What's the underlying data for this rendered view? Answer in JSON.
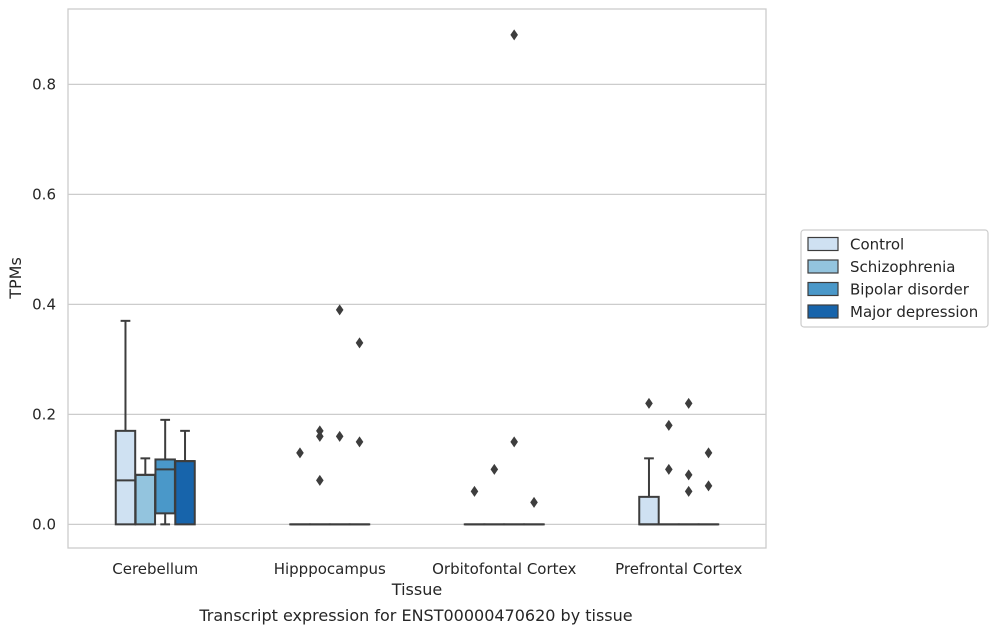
{
  "caption": "Transcript expression for ENST00000470620 by tissue",
  "colors": {
    "Control": "#cfe1f2",
    "Schizophrenia": "#93c4de",
    "Bipolar disorder": "#4a98c9",
    "Major depression": "#1764ab",
    "grid": "#cccccc",
    "box_edge": "#3d3d3d"
  },
  "chart_data": {
    "type": "box",
    "xlabel": "Tissue",
    "ylabel": "TPMs",
    "ylim": [
      -0.043,
      0.937
    ],
    "yticks": [
      0.0,
      0.2,
      0.4,
      0.6,
      0.8
    ],
    "ytick_labels": [
      "0.0",
      "0.2",
      "0.4",
      "0.6",
      "0.8"
    ],
    "grid": "horizontal",
    "legend_position": "right",
    "categories": [
      "Cerebellum",
      "Hipppocampus",
      "Orbitofontal Cortex",
      "Prefrontal Cortex"
    ],
    "hue_order": [
      "Control",
      "Schizophrenia",
      "Bipolar disorder",
      "Major depression"
    ],
    "boxes": [
      {
        "category": "Cerebellum",
        "hue": "Control",
        "whislo": 0.0,
        "q1": 0.0,
        "med": 0.08,
        "q3": 0.17,
        "whishi": 0.37,
        "fliers": []
      },
      {
        "category": "Cerebellum",
        "hue": "Schizophrenia",
        "whislo": 0.0,
        "q1": 0.0,
        "med": 0.09,
        "q3": 0.09,
        "whishi": 0.12,
        "fliers": []
      },
      {
        "category": "Cerebellum",
        "hue": "Bipolar disorder",
        "whislo": 0.0,
        "q1": 0.02,
        "med": 0.1,
        "q3": 0.118,
        "whishi": 0.19,
        "fliers": []
      },
      {
        "category": "Cerebellum",
        "hue": "Major depression",
        "whislo": 0.0,
        "q1": 0.0,
        "med": 0.115,
        "q3": 0.115,
        "whishi": 0.17,
        "fliers": []
      },
      {
        "category": "Hipppocampus",
        "hue": "Control",
        "whislo": 0.0,
        "q1": 0.0,
        "med": 0.0,
        "q3": 0.0,
        "whishi": 0.0,
        "fliers": [
          0.13
        ]
      },
      {
        "category": "Hipppocampus",
        "hue": "Schizophrenia",
        "whislo": 0.0,
        "q1": 0.0,
        "med": 0.0,
        "q3": 0.0,
        "whishi": 0.0,
        "fliers": [
          0.17,
          0.16,
          0.08
        ]
      },
      {
        "category": "Hipppocampus",
        "hue": "Bipolar disorder",
        "whislo": 0.0,
        "q1": 0.0,
        "med": 0.0,
        "q3": 0.0,
        "whishi": 0.0,
        "fliers": [
          0.39,
          0.16
        ]
      },
      {
        "category": "Hipppocampus",
        "hue": "Major depression",
        "whislo": 0.0,
        "q1": 0.0,
        "med": 0.0,
        "q3": 0.0,
        "whishi": 0.0,
        "fliers": [
          0.33,
          0.15
        ]
      },
      {
        "category": "Orbitofontal Cortex",
        "hue": "Control",
        "whislo": 0.0,
        "q1": 0.0,
        "med": 0.0,
        "q3": 0.0,
        "whishi": 0.0,
        "fliers": [
          0.06
        ]
      },
      {
        "category": "Orbitofontal Cortex",
        "hue": "Schizophrenia",
        "whislo": 0.0,
        "q1": 0.0,
        "med": 0.0,
        "q3": 0.0,
        "whishi": 0.0,
        "fliers": [
          0.1
        ]
      },
      {
        "category": "Orbitofontal Cortex",
        "hue": "Bipolar disorder",
        "whislo": 0.0,
        "q1": 0.0,
        "med": 0.0,
        "q3": 0.0,
        "whishi": 0.0,
        "fliers": [
          0.89,
          0.15
        ]
      },
      {
        "category": "Orbitofontal Cortex",
        "hue": "Major depression",
        "whislo": 0.0,
        "q1": 0.0,
        "med": 0.0,
        "q3": 0.0,
        "whishi": 0.0,
        "fliers": [
          0.04
        ]
      },
      {
        "category": "Prefrontal Cortex",
        "hue": "Control",
        "whislo": 0.0,
        "q1": 0.0,
        "med": 0.0,
        "q3": 0.05,
        "whishi": 0.12,
        "fliers": [
          0.22
        ]
      },
      {
        "category": "Prefrontal Cortex",
        "hue": "Schizophrenia",
        "whislo": 0.0,
        "q1": 0.0,
        "med": 0.0,
        "q3": 0.0,
        "whishi": 0.0,
        "fliers": [
          0.18,
          0.1
        ]
      },
      {
        "category": "Prefrontal Cortex",
        "hue": "Bipolar disorder",
        "whislo": 0.0,
        "q1": 0.0,
        "med": 0.0,
        "q3": 0.0,
        "whishi": 0.0,
        "fliers": [
          0.22,
          0.09,
          0.06
        ]
      },
      {
        "category": "Prefrontal Cortex",
        "hue": "Major depression",
        "whislo": 0.0,
        "q1": 0.0,
        "med": 0.0,
        "q3": 0.0,
        "whishi": 0.0,
        "fliers": [
          0.13,
          0.07
        ]
      }
    ]
  }
}
